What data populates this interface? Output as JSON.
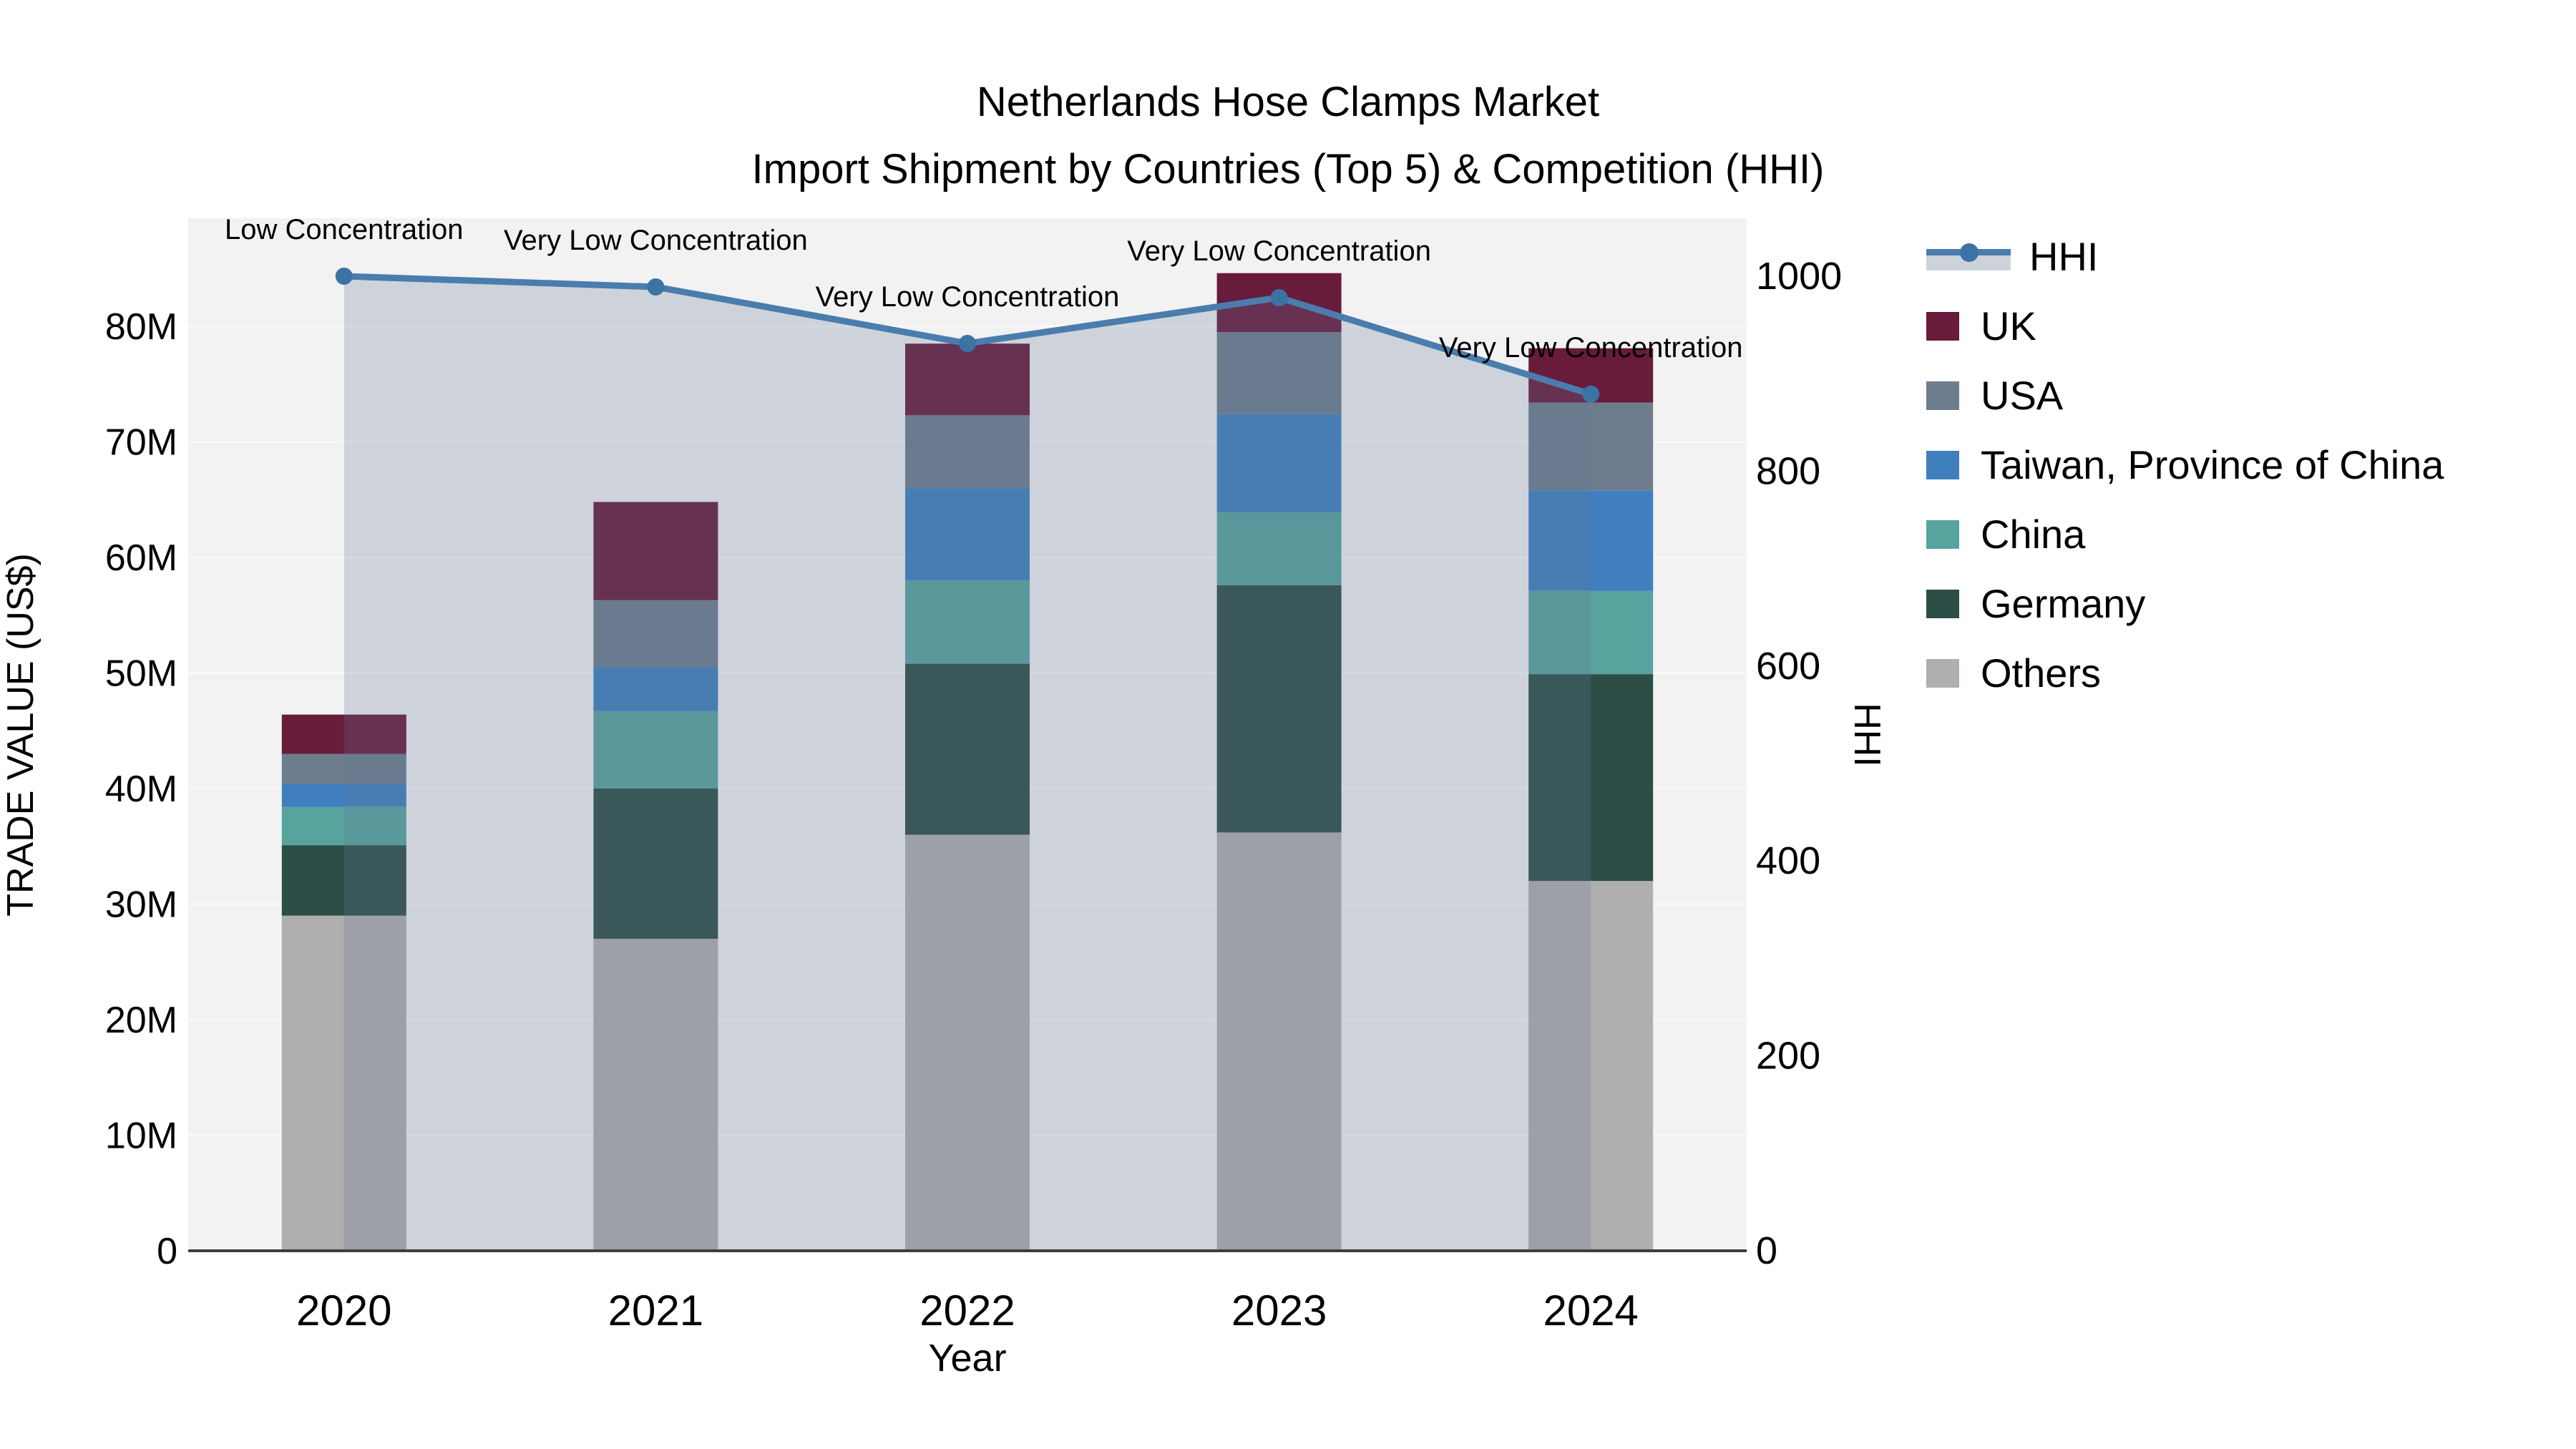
{
  "title": {
    "line1": "Netherlands Hose Clamps Market",
    "line2": "Import Shipment by Countries (Top 5) & Competition (HHI)"
  },
  "axes": {
    "x_title": "Year",
    "y_left_title": "TRADE VALUE (US$)",
    "y_right_title": "HHI",
    "x_tick_labels": [
      "2020",
      "2021",
      "2022",
      "2023",
      "2024"
    ],
    "y_left_tick_labels": [
      "0",
      "10M",
      "20M",
      "30M",
      "40M",
      "50M",
      "60M",
      "70M",
      "80M"
    ],
    "y_right_tick_labels": [
      "0",
      "200",
      "400",
      "600",
      "800",
      "1000"
    ]
  },
  "legend": {
    "position": "right",
    "items": [
      {
        "label": "HHI",
        "type": "line",
        "color": "#4a7dad"
      },
      {
        "label": "UK",
        "type": "swatch",
        "color": "#681b3b"
      },
      {
        "label": "USA",
        "type": "swatch",
        "color": "#6e7d8d"
      },
      {
        "label": "Taiwan, Province of China",
        "type": "swatch",
        "color": "#3f7fbe"
      },
      {
        "label": "China",
        "type": "swatch",
        "color": "#57a39e"
      },
      {
        "label": "Germany",
        "type": "swatch",
        "color": "#2c4e46"
      },
      {
        "label": "Others",
        "type": "swatch",
        "color": "#b0aeae"
      }
    ]
  },
  "chart_data": {
    "type": "combo-stacked-bar-line",
    "title": "Netherlands Hose Clamps Market — Import Shipment by Countries (Top 5) & Competition (HHI)",
    "categories": [
      "2020",
      "2021",
      "2022",
      "2023",
      "2024"
    ],
    "unit": "US$ millions",
    "xlabel": "Year",
    "ylabel_left": "TRADE VALUE (US$)",
    "ylabel_right": "HHI",
    "y_left_range": [
      0,
      89.4
    ],
    "y_right_range": [
      0,
      1059
    ],
    "grid": "horizontal-white-on-lightgray",
    "stack_order_bottom_to_top": [
      "Others",
      "Germany",
      "China",
      "Taiwan, Province of China",
      "USA",
      "UK"
    ],
    "series": [
      {
        "name": "UK",
        "color": "#681b3b",
        "values": [
          3.4,
          8.5,
          6.2,
          5.1,
          4.7
        ]
      },
      {
        "name": "USA",
        "color": "#6e7d8d",
        "values": [
          2.6,
          5.8,
          6.3,
          7.1,
          7.6
        ]
      },
      {
        "name": "Taiwan, Province of China",
        "color": "#3f7fbe",
        "values": [
          2.0,
          3.8,
          8.0,
          8.5,
          8.7
        ]
      },
      {
        "name": "China",
        "color": "#57a39e",
        "values": [
          3.3,
          6.7,
          7.2,
          6.3,
          7.2
        ]
      },
      {
        "name": "Germany",
        "color": "#2c4e46",
        "values": [
          6.1,
          13.0,
          14.8,
          21.4,
          17.9
        ]
      },
      {
        "name": "Others",
        "color": "#b0aeae",
        "values": [
          29.0,
          27.0,
          36.0,
          36.2,
          32.0
        ]
      }
    ],
    "bar_totals": [
      46.4,
      64.8,
      78.5,
      84.6,
      78.1
    ],
    "hhi": {
      "name": "HHI",
      "axis": "right",
      "line_color": "#4a7dad",
      "marker_color": "#3b73a5",
      "area_fill": "rgba(100,120,150,0.25)",
      "values": [
        1000,
        989,
        931,
        978,
        879
      ]
    },
    "annotations": [
      {
        "category": "2020",
        "text": "Low Concentration"
      },
      {
        "category": "2021",
        "text": "Very Low Concentration"
      },
      {
        "category": "2022",
        "text": "Very Low Concentration"
      },
      {
        "category": "2023",
        "text": "Very Low Concentration"
      },
      {
        "category": "2024",
        "text": "Very Low Concentration"
      }
    ],
    "colors": {
      "plot_background": "#f2f2f2",
      "figure_background": "#ffffff",
      "gridline": "#fafafa",
      "axis_line": "#3c4045",
      "hhi_legend_band": "#ccd3db"
    }
  }
}
